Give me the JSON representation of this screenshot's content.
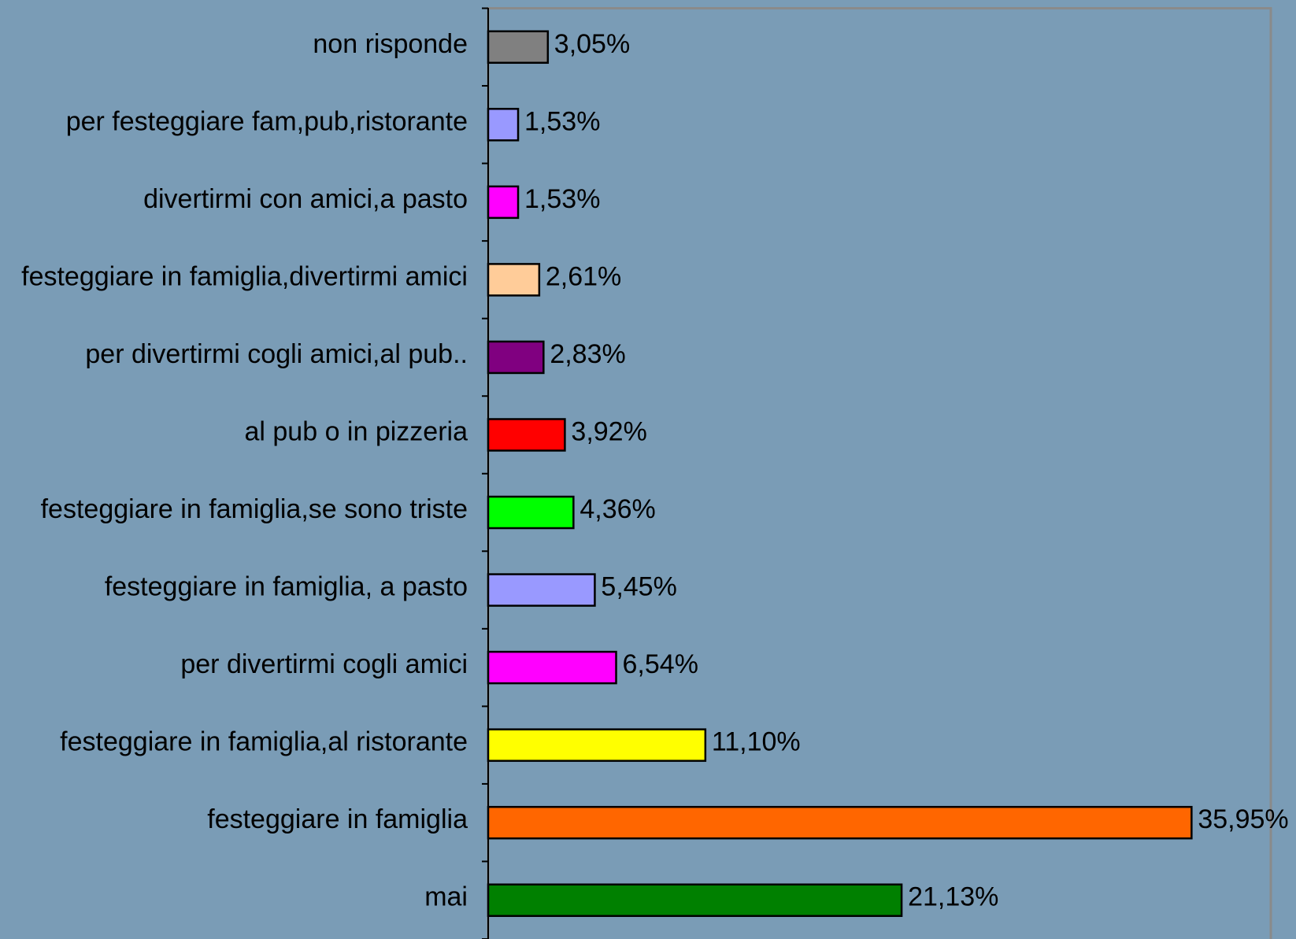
{
  "chart_data": {
    "type": "barh",
    "categories": [
      "non risponde",
      "per festeggiare fam,pub,ristorante",
      "divertirmi con amici,a pasto",
      "festeggiare in famiglia,divertirmi amici",
      "per divertirmi cogli amici,al pub..",
      "al pub o in pizzeria",
      "festeggiare in famiglia,se sono triste",
      "festeggiare in famiglia, a pasto",
      "per divertirmi cogli amici",
      "festeggiare in famiglia,al ristorante",
      "festeggiare in famiglia",
      "mai"
    ],
    "values": [
      3.05,
      1.53,
      1.53,
      2.61,
      2.83,
      3.92,
      4.36,
      5.45,
      6.54,
      11.1,
      35.95,
      21.13
    ],
    "value_labels": [
      "3,05%",
      "1,53%",
      "1,53%",
      "2,61%",
      "2,83%",
      "3,92%",
      "4,36%",
      "5,45%",
      "6,54%",
      "11,10%",
      "35,95%",
      "21,13%"
    ],
    "colors": [
      "#808080",
      "#9999ff",
      "#ff00ff",
      "#ffcc99",
      "#800080",
      "#ff0000",
      "#00ff00",
      "#9999ff",
      "#ff00ff",
      "#ffff00",
      "#ff6600",
      "#008000"
    ],
    "xlim": [
      0,
      40
    ]
  }
}
